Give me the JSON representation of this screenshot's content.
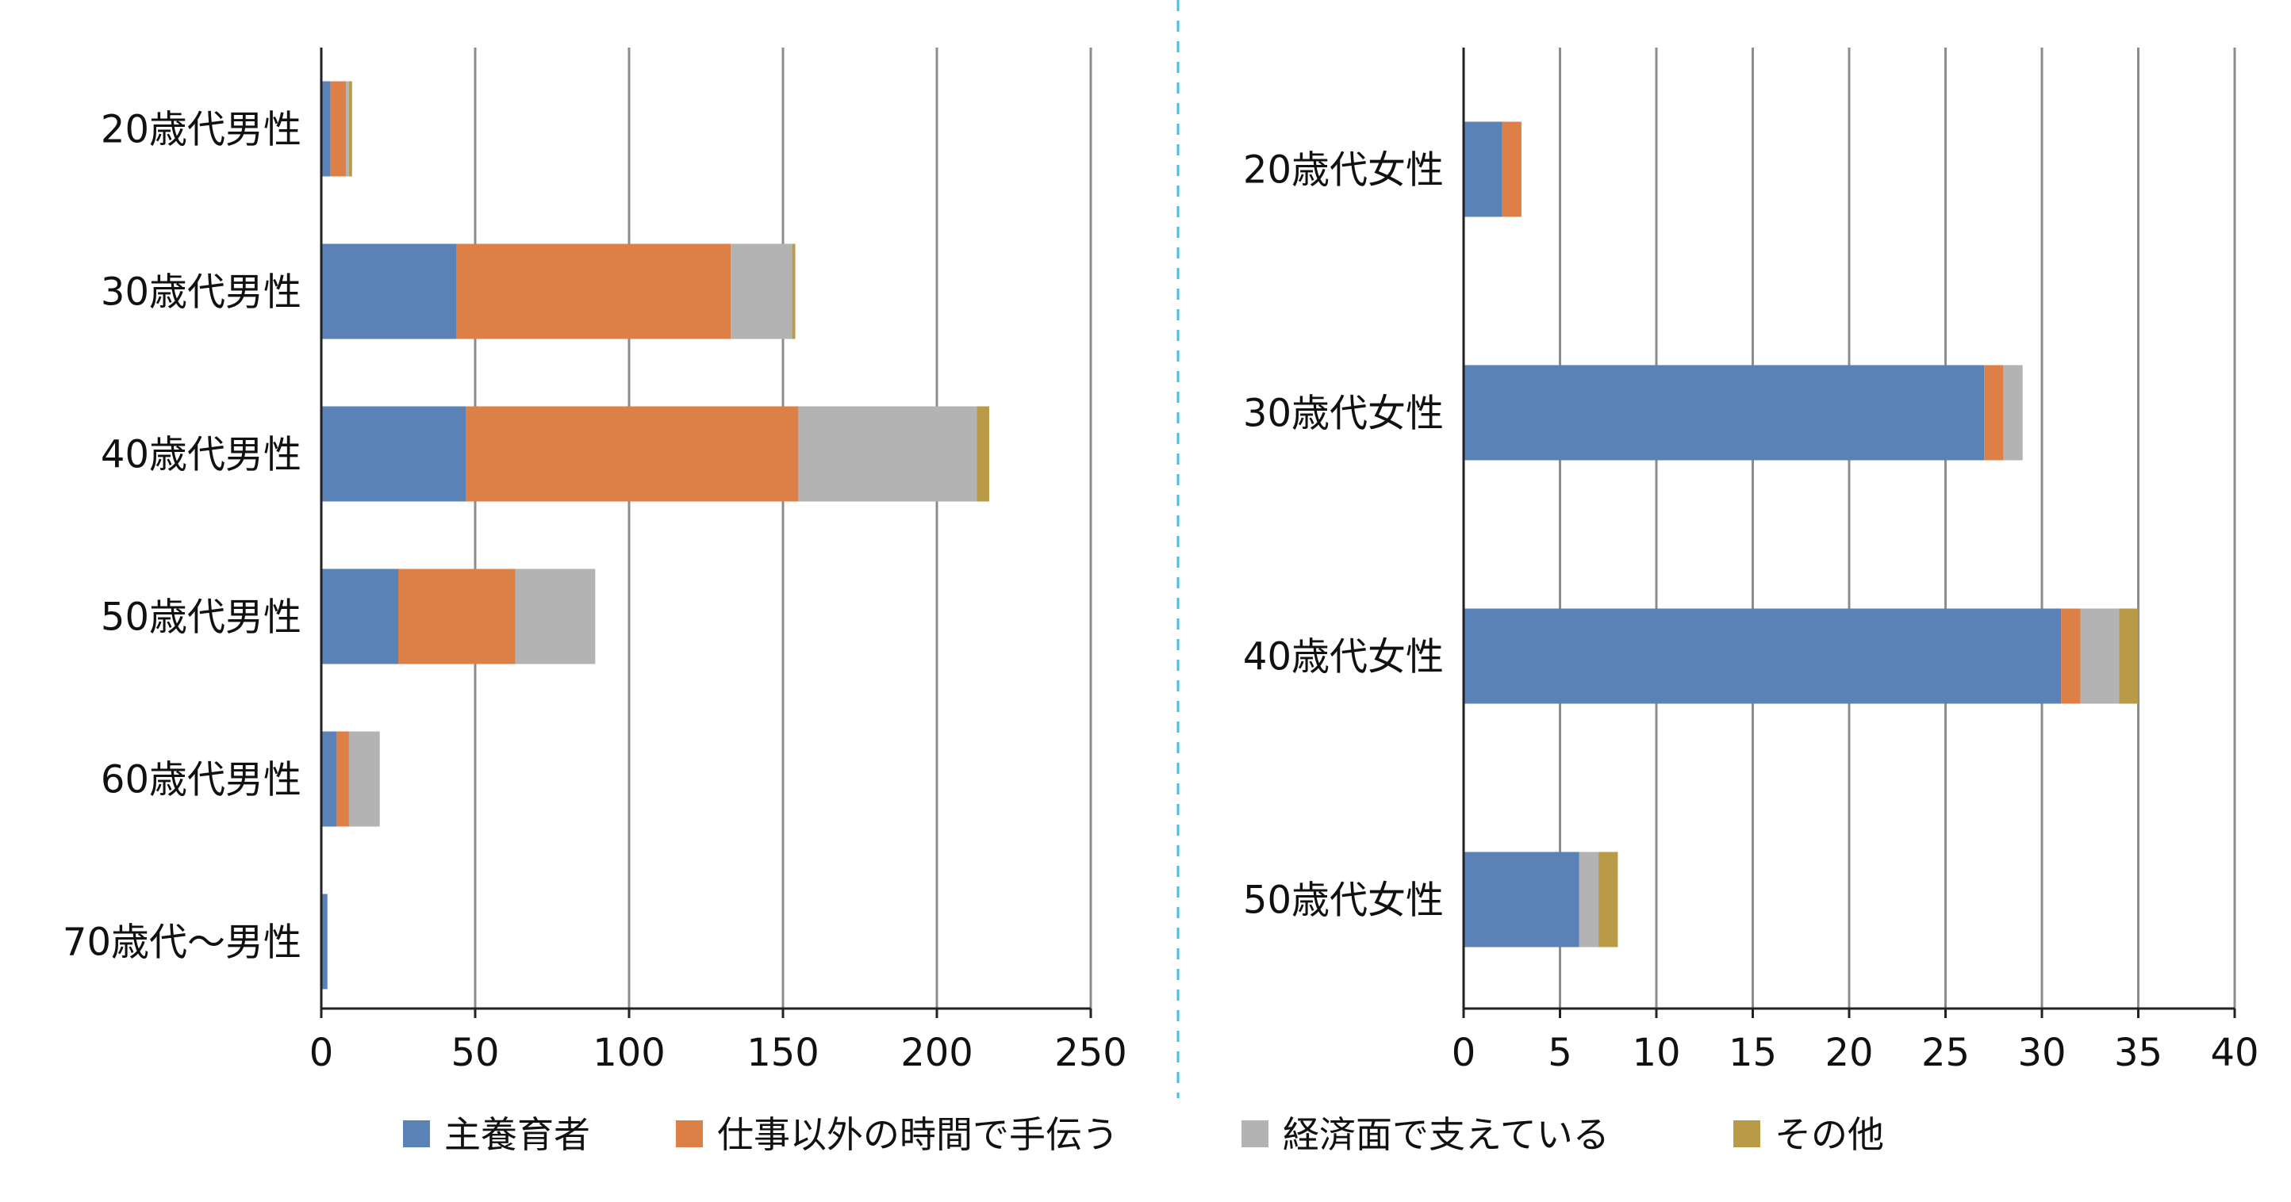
{
  "chart_data": [
    {
      "type": "bar",
      "orientation": "horizontal",
      "stacked": true,
      "categories": [
        "20歳代男性",
        "30歳代男性",
        "40歳代男性",
        "50歳代男性",
        "60歳代男性",
        "70歳代～男性"
      ],
      "series": [
        {
          "name": "主養育者",
          "values": [
            3,
            44,
            47,
            25,
            5,
            2
          ]
        },
        {
          "name": "仕事以外の時間で手伝う",
          "values": [
            5,
            89,
            108,
            38,
            4,
            0
          ]
        },
        {
          "name": "経済面で支えている",
          "values": [
            1,
            20,
            58,
            26,
            10,
            0
          ]
        },
        {
          "name": "その他",
          "values": [
            1,
            1,
            4,
            0,
            0,
            0
          ]
        }
      ],
      "xlim": [
        0,
        250
      ],
      "xticks": [
        0,
        50,
        100,
        150,
        200,
        250
      ],
      "grid": true
    },
    {
      "type": "bar",
      "orientation": "horizontal",
      "stacked": true,
      "categories": [
        "20歳代女性",
        "30歳代女性",
        "40歳代女性",
        "50歳代女性"
      ],
      "series": [
        {
          "name": "主養育者",
          "values": [
            2,
            27,
            31,
            6
          ]
        },
        {
          "name": "仕事以外の時間で手伝う",
          "values": [
            1,
            1,
            1,
            0
          ]
        },
        {
          "name": "経済面で支えている",
          "values": [
            0,
            1,
            2,
            1
          ]
        },
        {
          "name": "その他",
          "values": [
            0,
            0,
            1,
            1
          ]
        }
      ],
      "xlim": [
        0,
        40
      ],
      "xticks": [
        0,
        5,
        10,
        15,
        20,
        25,
        30,
        35,
        40
      ],
      "grid": true
    }
  ],
  "legend": {
    "position": "bottom",
    "items": [
      {
        "label": "主養育者",
        "color": "#5b82b6"
      },
      {
        "label": "仕事以外の時間で手伝う",
        "color": "#dc8048"
      },
      {
        "label": "経済面で支えている",
        "color": "#b3b3b3"
      },
      {
        "label": "その他",
        "color": "#b99a46"
      }
    ]
  },
  "colors": [
    "#5b82b6",
    "#dc8048",
    "#b3b3b3",
    "#b99a46"
  ]
}
